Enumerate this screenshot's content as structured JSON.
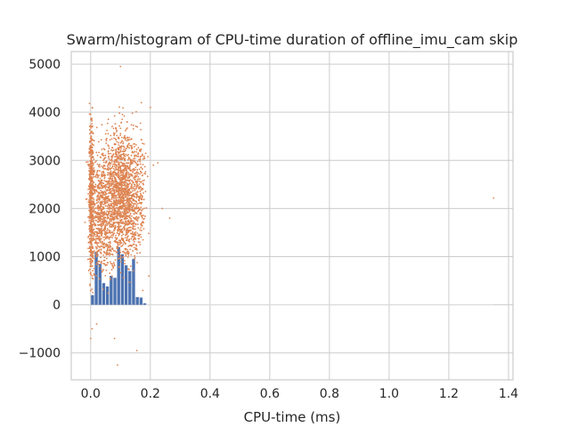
{
  "chart_data": {
    "type": "scatter",
    "title": "Swarm/histogram of CPU-time duration of offline_imu_cam skip",
    "xlabel": "CPU-time (ms)",
    "ylabel": "",
    "xlim": [
      -0.065,
      1.415
    ],
    "ylim": [
      -1560,
      5260
    ],
    "grid": true,
    "x_ticks": [
      0.0,
      0.2,
      0.4,
      0.6,
      0.8,
      1.0,
      1.2,
      1.4
    ],
    "x_tick_labels": [
      "0.0",
      "0.2",
      "0.4",
      "0.6",
      "0.8",
      "1.0",
      "1.2",
      "1.4"
    ],
    "y_ticks": [
      -1000,
      0,
      1000,
      2000,
      3000,
      4000,
      5000
    ],
    "y_tick_labels": [
      "−1000",
      "0",
      "1000",
      "2000",
      "3000",
      "4000",
      "5000"
    ],
    "series": [
      {
        "kind": "histogram",
        "color": "#4c72b0",
        "bin_width": 0.0125,
        "bins": [
          [
            0.0,
            200
          ],
          [
            0.0125,
            1100
          ],
          [
            0.025,
            850
          ],
          [
            0.0375,
            450
          ],
          [
            0.05,
            380
          ],
          [
            0.0625,
            600
          ],
          [
            0.075,
            560
          ],
          [
            0.0875,
            1200
          ],
          [
            0.1,
            1050
          ],
          [
            0.1125,
            820
          ],
          [
            0.125,
            700
          ],
          [
            0.1375,
            950
          ],
          [
            0.15,
            160
          ],
          [
            0.1625,
            150
          ],
          [
            0.175,
            30
          ]
        ]
      },
      {
        "kind": "swarm",
        "color": "#dd8452",
        "clusters": [
          {
            "x_center": 0.002,
            "x_spread": 0.004,
            "y_center": 2200,
            "y_spread": 1100,
            "count": 500
          },
          {
            "x_center": 0.035,
            "x_spread": 0.02,
            "y_center": 1900,
            "y_spread": 900,
            "count": 700
          },
          {
            "x_center": 0.105,
            "x_spread": 0.03,
            "y_center": 2300,
            "y_spread": 950,
            "count": 1700
          },
          {
            "x_center": 0.165,
            "x_spread": 0.01,
            "y_center": 2400,
            "y_spread": 800,
            "count": 140
          }
        ],
        "outliers": [
          [
            0.21,
            2900
          ],
          [
            0.225,
            2950
          ],
          [
            0.24,
            2000
          ],
          [
            0.265,
            1800
          ],
          [
            0.2,
            4100
          ],
          [
            0.195,
            600
          ],
          [
            0.1,
            4950
          ],
          [
            0.09,
            -1250
          ],
          [
            0.155,
            -950
          ],
          [
            0.0,
            -700
          ],
          [
            0.005,
            -500
          ],
          [
            0.02,
            -400
          ],
          [
            1.35,
            2220
          ],
          [
            0.17,
            4200
          ],
          [
            0.08,
            -700
          ]
        ]
      },
      {
        "kind": "baseline",
        "color": "#dddddd",
        "x_range": [
          0.185,
          1.35
        ],
        "y": 0
      }
    ]
  }
}
